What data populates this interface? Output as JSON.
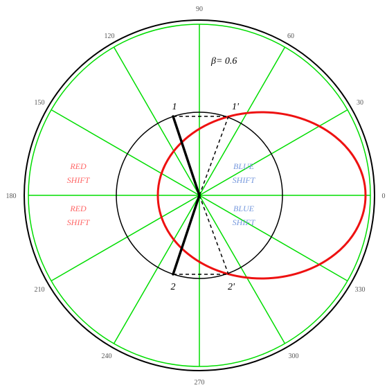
{
  "angle_labels": [
    "90",
    "120",
    "60",
    "150",
    "30",
    "180",
    "0",
    "210",
    "330",
    "240",
    "300",
    "270"
  ],
  "beta_label": "β= 0.6",
  "regions": {
    "red_upper": [
      "RED",
      "SHIFT"
    ],
    "red_lower": [
      "RED",
      "SHIFT"
    ],
    "blue_upper": [
      "BLUE",
      "SHIFT"
    ],
    "blue_lower": [
      "BLUE",
      "SHIFT"
    ]
  },
  "points": {
    "p1": "1",
    "p1_prime": "1'",
    "p2": "2",
    "p2_prime": "2'"
  },
  "colors": {
    "grid": "#00dd00",
    "ellipse": "#ee1111",
    "red_text": "#ff6666",
    "blue_text": "#7799dd",
    "outline": "#000000"
  }
}
